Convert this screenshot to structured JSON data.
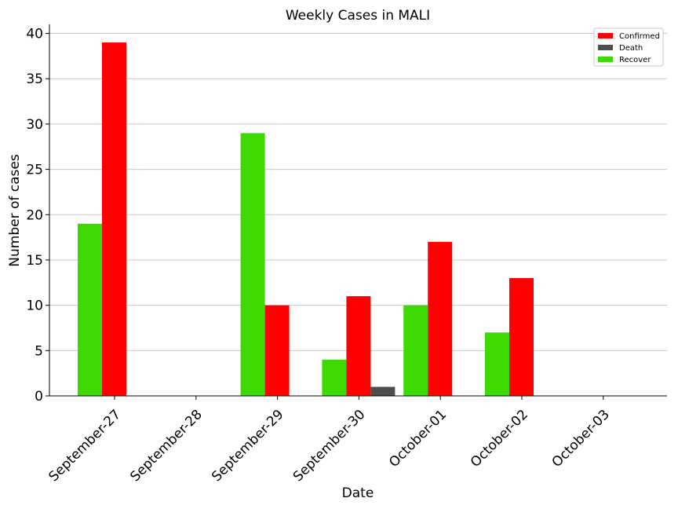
{
  "chart_data": {
    "type": "bar",
    "title": "Weekly Cases in MALI",
    "xlabel": "Date",
    "ylabel": "Number of cases",
    "categories": [
      "September-27",
      "September-28",
      "September-29",
      "September-30",
      "October-01",
      "October-02",
      "October-03"
    ],
    "series": [
      {
        "name": "Recover",
        "color": "#3fd800",
        "values": [
          19,
          0,
          29,
          4,
          10,
          7,
          0
        ]
      },
      {
        "name": "Confirmed",
        "color": "#ff0000",
        "values": [
          39,
          0,
          10,
          11,
          17,
          13,
          0
        ]
      },
      {
        "name": "Death",
        "color": "#4d4d4d",
        "values": [
          0,
          0,
          0,
          1,
          0,
          0,
          0
        ]
      }
    ],
    "legend_order": [
      "Confirmed",
      "Death",
      "Recover"
    ],
    "ylim": [
      0,
      41
    ],
    "yticks": [
      0,
      5,
      10,
      15,
      20,
      25,
      30,
      35,
      40
    ],
    "grid": "horizontal",
    "legend_position": "top-right"
  }
}
